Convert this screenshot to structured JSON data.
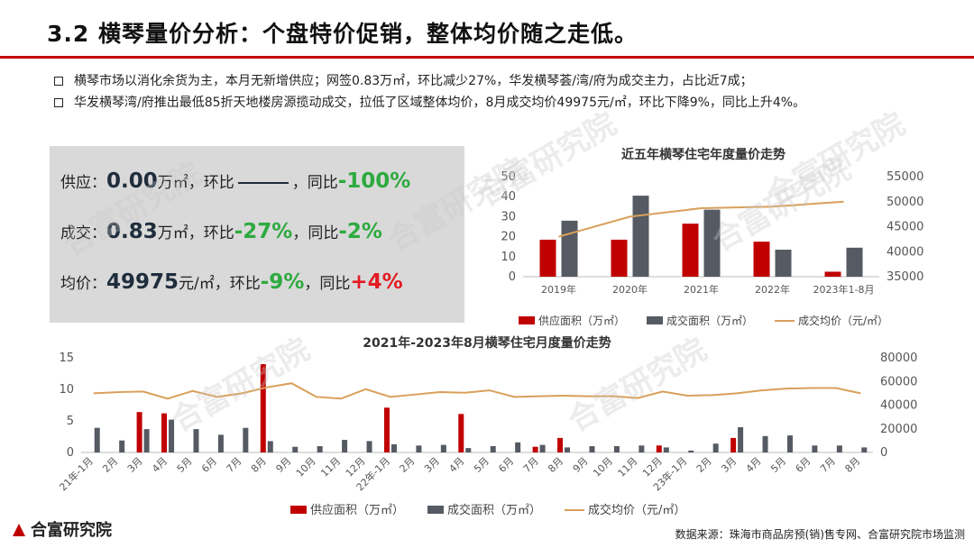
{
  "header": {
    "title": "3.2 横琴量价分析：个盘特价促销，整体均价随之走低。"
  },
  "bullets": [
    "横琴市场以消化余货为主，本月无新增供应；网签0.83万㎡，环比减少27%，华发横琴荟/湾/府为成交主力，占比近7成；",
    "华发横琴湾/府推出最低85折天地楼房源揽动成交，拉低了区域整体均价，8月成交均价49975元/㎡，环比下降9%，同比上升4%。"
  ],
  "kpi": {
    "supply": {
      "label": "供应：",
      "value": "0.00",
      "unit": "万㎡，环比",
      "sep": "，同比",
      "yoy": "-100%"
    },
    "deal": {
      "label": "成交：",
      "value": "0.83",
      "unit": "万㎡，环比",
      "mom": "-27%",
      "sep": "，同比",
      "yoy": "-2%"
    },
    "price": {
      "label": "均价：",
      "value": "49975",
      "unit": "元/㎡，环比",
      "mom": "-9%",
      "sep": "，同比",
      "yoy": "+4%"
    }
  },
  "colors": {
    "supply": "#c00000",
    "deal": "#555a63",
    "price": "#d9a05b",
    "green": "#2eaa3f",
    "red": "#e31b23"
  },
  "chart_data": [
    {
      "type": "bar",
      "title": "近五年横琴住宅年度量价走势",
      "categories": [
        "2019年",
        "2020年",
        "2021年",
        "2022年",
        "2023年1-8月"
      ],
      "series": [
        {
          "name": "供应面积（万㎡）",
          "type": "bar",
          "axis": "left",
          "values": [
            18.5,
            18.5,
            26.5,
            17.5,
            2.5
          ]
        },
        {
          "name": "成交面积（万㎡）",
          "type": "bar",
          "axis": "left",
          "values": [
            28,
            40.5,
            33.5,
            13.5,
            14.5
          ]
        },
        {
          "name": "成交均价（元/㎡）",
          "type": "line",
          "axis": "right",
          "values": [
            43000,
            47000,
            48700,
            49000,
            50000
          ]
        }
      ],
      "ylim_left": [
        0,
        50
      ],
      "yticks_left": [
        "0",
        "10",
        "20",
        "30",
        "40",
        "50"
      ],
      "ylim_right": [
        35000,
        55000
      ],
      "yticks_right": [
        "35000",
        "40000",
        "45000",
        "50000",
        "55000"
      ],
      "legend": "bottom"
    },
    {
      "type": "bar",
      "title": "2021年-2023年8月横琴住宅月度量价走势",
      "categories": [
        "21年-1月",
        "2月",
        "3月",
        "4月",
        "5月",
        "6月",
        "7月",
        "8月",
        "9月",
        "10月",
        "11月",
        "12月",
        "22年-1月",
        "2月",
        "3月",
        "4月",
        "5月",
        "6月",
        "7月",
        "8月",
        "9月",
        "10月",
        "11月",
        "12月",
        "23年-1月",
        "2月",
        "3月",
        "4月",
        "5月",
        "6月",
        "7月",
        "8月"
      ],
      "series": [
        {
          "name": "供应面积（万㎡）",
          "type": "bar",
          "axis": "left",
          "values": [
            0,
            0,
            6.4,
            6.2,
            0,
            0,
            0,
            14,
            0,
            0,
            0,
            0,
            7.1,
            0,
            0,
            6.1,
            0,
            0,
            0.9,
            2.3,
            0,
            0,
            0,
            1.1,
            0,
            0,
            2.3,
            0,
            0,
            0,
            0,
            0
          ]
        },
        {
          "name": "成交面积（万㎡）",
          "type": "bar",
          "axis": "left",
          "values": [
            3.9,
            1.9,
            3.7,
            5.2,
            3.7,
            2.8,
            3.9,
            1.8,
            0.9,
            1.0,
            2.0,
            1.8,
            1.3,
            1.1,
            1.2,
            0.7,
            1.0,
            1.6,
            1.2,
            0.8,
            1.0,
            1.0,
            1.1,
            0.8,
            0.3,
            1.4,
            4.0,
            2.6,
            2.7,
            1.1,
            1.1,
            0.8
          ]
        },
        {
          "name": "成交均价（元/㎡）",
          "type": "line",
          "axis": "right",
          "values": [
            50000,
            51000,
            51500,
            45500,
            52000,
            47000,
            50000,
            55000,
            58500,
            47000,
            45500,
            53500,
            47000,
            49000,
            51000,
            50500,
            52500,
            47000,
            47500,
            48000,
            47500,
            47500,
            46000,
            51500,
            48000,
            48500,
            50000,
            52500,
            54000,
            54500,
            54500,
            49975
          ]
        }
      ],
      "ylim_left": [
        0,
        15
      ],
      "yticks_left": [
        "0",
        "5",
        "10",
        "15"
      ],
      "ylim_right": [
        0,
        80000
      ],
      "yticks_right": [
        "0",
        "20000",
        "40000",
        "60000",
        "80000"
      ],
      "legend": "bottom"
    }
  ],
  "footer": {
    "logo": "合富研究院",
    "source": "数据来源：珠海市商品房预(销)售专网、合富研究院市场监测"
  },
  "watermark": "合富研究院"
}
